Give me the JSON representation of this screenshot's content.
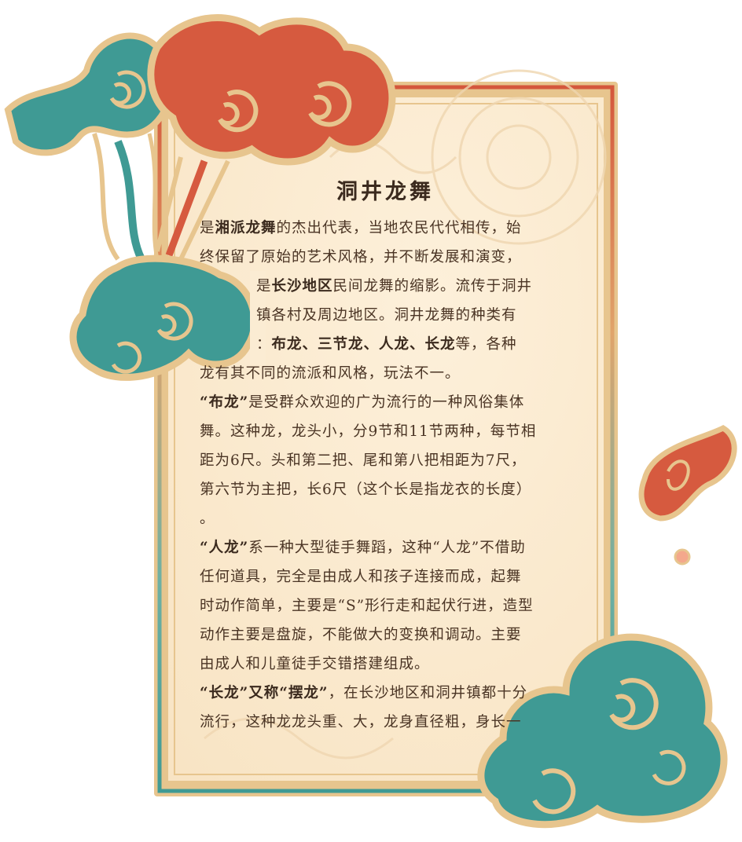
{
  "title": "洞井龙舞",
  "colors": {
    "paper": "#fbecd3",
    "frame_gold": "#e7c58e",
    "frame_red": "#d4573c",
    "teal": "#3f9a94",
    "teal_dark": "#2e6f6b",
    "red": "#d65a3f",
    "text": "#4a3424"
  },
  "paragraphs": [
    {
      "lines": [
        [
          {
            "t": "是",
            "b": false
          },
          {
            "t": "湘派龙舞",
            "b": true
          },
          {
            "t": "的杰出代表，当地农民代代相传，始",
            "b": false
          }
        ],
        [
          {
            "t": "终保留了原始的艺术风格，并不断发展和演变，",
            "b": false
          }
        ],
        [
          {
            "t": "是",
            "b": false
          },
          {
            "t": "长沙地区",
            "b": true
          },
          {
            "t": "民间龙舞的缩影。流传于洞井",
            "b": false
          }
        ],
        [
          {
            "t": "镇各村及周边地区。洞井龙舞的种类有",
            "b": false
          }
        ],
        [
          {
            "t": "：",
            "b": false
          },
          {
            "t": "布龙、三节龙、人龙、长龙",
            "b": true
          },
          {
            "t": "等，各种",
            "b": false
          }
        ],
        [
          {
            "t": "龙有其不同的流派和风格，玩法不一。",
            "b": false
          }
        ]
      ]
    },
    {
      "lines": [
        [
          {
            "t": "“布龙”",
            "b": true
          },
          {
            "t": "是受群众欢迎的广为流行的一种风俗集体",
            "b": false
          }
        ],
        [
          {
            "t": "舞。这种龙，龙头小，分9节和11节两种，每节相",
            "b": false
          }
        ],
        [
          {
            "t": "距为6尺。头和第二把、尾和第八把相距为7尺，",
            "b": false
          }
        ],
        [
          {
            "t": "第六节为主把，长6尺（这个长是指龙衣的长度）",
            "b": false
          }
        ],
        [
          {
            "t": "。",
            "b": false
          }
        ]
      ]
    },
    {
      "lines": [
        [
          {
            "t": "“人龙”",
            "b": true
          },
          {
            "t": "系一种大型徒手舞蹈，这种“人龙”不借助",
            "b": false
          }
        ],
        [
          {
            "t": "任何道具，完全是由成人和孩子连接而成，起舞",
            "b": false
          }
        ],
        [
          {
            "t": "时动作简单，主要是“S”形行走和起伏行进，造型",
            "b": false
          }
        ],
        [
          {
            "t": "动作主要是盘旋，不能做大的变换和调动。主要",
            "b": false
          }
        ],
        [
          {
            "t": "由成人和儿童徒手交错搭建组成。",
            "b": false
          }
        ]
      ]
    },
    {
      "lines": [
        [
          {
            "t": "“长龙”又称“摆龙”",
            "b": true
          },
          {
            "t": "，在长沙地区和洞井镇都十分",
            "b": false
          }
        ],
        [
          {
            "t": "流行，这种龙龙头重、大，龙身直径粗，身长一",
            "b": false
          }
        ]
      ]
    }
  ]
}
